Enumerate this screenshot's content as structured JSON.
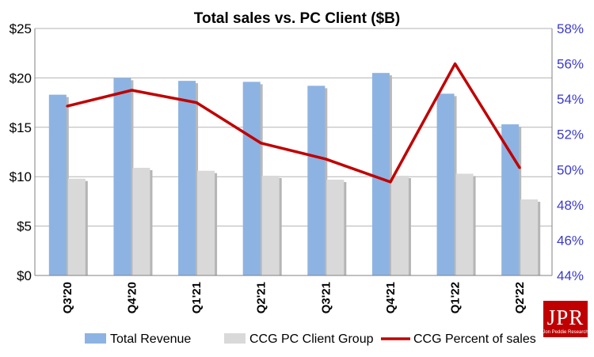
{
  "chart_data": {
    "type": "bar",
    "title": "Total sales vs. PC Client ($B)",
    "categories": [
      "Q3'20",
      "Q4'20",
      "Q1'21",
      "Q2'21",
      "Q3'21",
      "Q4'21",
      "Q1'22",
      "Q2'22"
    ],
    "series": [
      {
        "name": "Total Revenue",
        "type": "bar",
        "axis": "left",
        "color": "#8db3e2",
        "values": [
          18.3,
          20.0,
          19.7,
          19.6,
          19.2,
          20.5,
          18.4,
          15.3
        ]
      },
      {
        "name": "CCG PC Client Group",
        "type": "bar",
        "axis": "left",
        "color": "#d9d9d9",
        "values": [
          9.8,
          10.9,
          10.6,
          10.1,
          9.7,
          10.1,
          10.3,
          7.7
        ]
      },
      {
        "name": "CCG Percent of sales",
        "type": "line",
        "axis": "right",
        "color": "#c00000",
        "values": [
          53.6,
          54.5,
          53.8,
          51.5,
          50.6,
          49.3,
          56.0,
          50.1
        ]
      }
    ],
    "y_left": {
      "min": 0,
      "max": 25,
      "step": 5,
      "tick_labels": [
        "$0",
        "$5",
        "$10",
        "$15",
        "$20",
        "$25"
      ]
    },
    "y_right": {
      "min": 44,
      "max": 58,
      "step": 2,
      "color": "#3a3acb",
      "tick_labels": [
        "44%",
        "46%",
        "48%",
        "50%",
        "52%",
        "54%",
        "56%",
        "58%"
      ]
    },
    "grid": true,
    "legend": "bottom"
  },
  "logo": {
    "text": "JPR",
    "subtext": "Jon Peddie Research",
    "color": "#c00000"
  }
}
